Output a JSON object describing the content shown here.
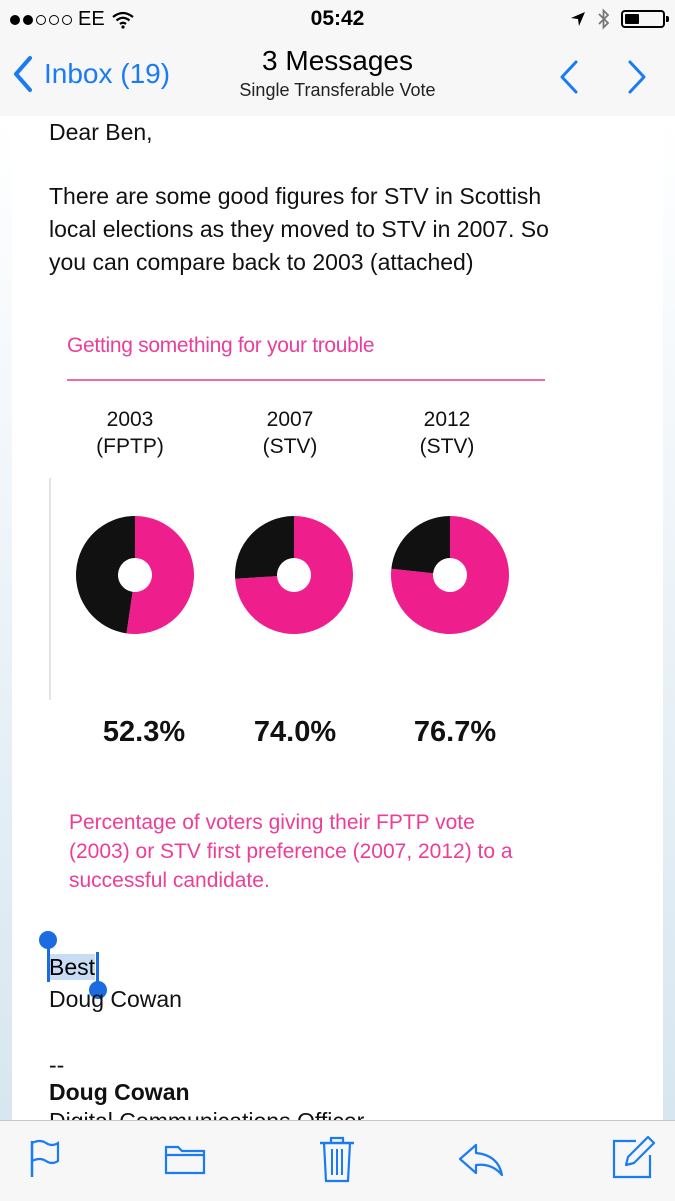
{
  "status_bar": {
    "carrier": "EE",
    "time": "05:42"
  },
  "nav": {
    "back_label": "Inbox (19)",
    "title": "3 Messages",
    "subtitle": "Single Transferable Vote"
  },
  "email": {
    "greeting": "Dear Ben,",
    "paragraph_lines": [
      "There are some good figures for STV in Scottish",
      "local elections as they moved to STV in 2007. So",
      "you can compare back to 2003 (attached)"
    ],
    "sign_off_selected": "Best",
    "signer_name": "Doug Cowan",
    "separator": "--",
    "sig_name": "Doug Cowan",
    "sig_role": "Digital Communications Officer"
  },
  "chart_data": {
    "type": "pie",
    "title": "Getting something for your trouble",
    "categories": [
      {
        "year": "2003",
        "system": "(FPTP)"
      },
      {
        "year": "2007",
        "system": "(STV)"
      },
      {
        "year": "2012",
        "system": "(STV)"
      }
    ],
    "values": [
      52.3,
      74.0,
      76.7
    ],
    "value_labels": [
      "52.3%",
      "74.0%",
      "76.7%"
    ],
    "caption_lines": [
      "Percentage of voters giving their FPTP vote",
      "(2003) or STV first preference (2007, 2012) to a",
      "successful candidate."
    ],
    "colors": {
      "success": "#ee1f8d",
      "other": "#111111",
      "accent": "#ea3e9b"
    }
  },
  "colors": {
    "ios_blue": "#1a7bf5",
    "bar_bg": "#f7f7f8"
  },
  "icons": [
    "wifi-icon",
    "location-arrow-icon",
    "bluetooth-icon",
    "battery-icon",
    "back-chevron-icon",
    "prev-message-icon",
    "next-message-icon",
    "flag-icon",
    "folder-icon",
    "trash-icon",
    "reply-icon",
    "compose-icon"
  ]
}
